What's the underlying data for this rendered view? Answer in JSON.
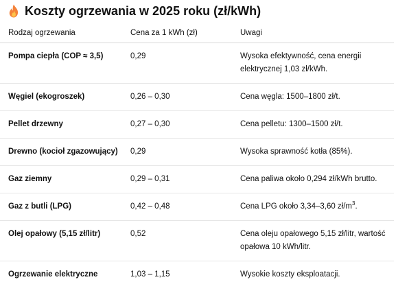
{
  "title": "Koszty ogrzewania w 2025 roku (zł/kWh)",
  "title_icon": "fire-icon",
  "colors": {
    "flame_outer": "#F4823A",
    "flame_inner": "#FDC34A",
    "border": "#d8d8d8"
  },
  "table": {
    "headers": [
      "Rodzaj ogrzewania",
      "Cena za 1 kWh (zł)",
      "Uwagi"
    ],
    "rows": [
      {
        "type": "Pompa ciepła (COP ≈ 3,5)",
        "price": "0,29",
        "note": "Wysoka efektywność, cena energii elektrycznej 1,03 zł/kWh."
      },
      {
        "type": "Węgiel (ekogroszek)",
        "price": "0,26 – 0,30",
        "note": "Cena węgla: 1500–1800 zł/t."
      },
      {
        "type": "Pellet drzewny",
        "price": "0,27 – 0,30",
        "note": "Cena pelletu: 1300–1500 zł/t."
      },
      {
        "type": "Drewno (kocioł zgazowujący)",
        "price": "0,29",
        "note": "Wysoka sprawność kotła (85%)."
      },
      {
        "type": "Gaz ziemny",
        "price": "0,29 – 0,31",
        "note": "Cena paliwa około 0,294 zł/kWh brutto."
      },
      {
        "type": "Gaz z butli (LPG)",
        "price": "0,42 – 0,48",
        "note_main": "Cena LPG około 3,34–3,60 zł/m",
        "note_sup": "3",
        "note_end": "."
      },
      {
        "type": "Olej opałowy (5,15 zł/litr)",
        "price": "0,52",
        "note": "Cena oleju opałowego 5,15 zł/litr, wartość opałowa 10 kWh/litr."
      },
      {
        "type": "Ogrzewanie elektryczne",
        "price": "1,03 – 1,15",
        "note": "Wysokie koszty eksploatacji."
      }
    ]
  }
}
